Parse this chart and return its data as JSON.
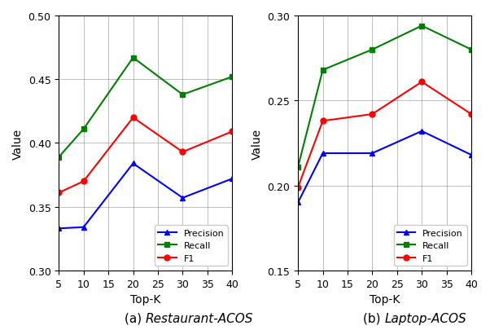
{
  "topk": [
    5,
    10,
    20,
    30,
    40
  ],
  "restaurant": {
    "precision": [
      0.333,
      0.334,
      0.384,
      0.357,
      0.372
    ],
    "recall": [
      0.389,
      0.411,
      0.467,
      0.438,
      0.452
    ],
    "f1": [
      0.361,
      0.37,
      0.42,
      0.393,
      0.409
    ]
  },
  "laptop": {
    "precision": [
      0.19,
      0.219,
      0.219,
      0.232,
      0.218
    ],
    "recall": [
      0.211,
      0.268,
      0.28,
      0.294,
      0.28
    ],
    "f1": [
      0.199,
      0.238,
      0.242,
      0.261,
      0.242
    ]
  },
  "precision_color": "#0000FF",
  "recall_color": "#008000",
  "f1_color": "#FF0000",
  "ylabel": "Value",
  "xlabel": "Top-K",
  "restaurant_ylim": [
    0.3,
    0.5
  ],
  "laptop_ylim": [
    0.15,
    0.3
  ],
  "restaurant_yticks": [
    0.3,
    0.35,
    0.4,
    0.45,
    0.5
  ],
  "laptop_yticks": [
    0.15,
    0.2,
    0.25,
    0.3
  ],
  "xticks": [
    5,
    10,
    15,
    20,
    25,
    30,
    35,
    40
  ],
  "caption_a_prefix": "(a) ",
  "caption_a_italic": "Restaurant-ACOS",
  "caption_b_prefix": "(b) ",
  "caption_b_italic": "Laptop-ACOS",
  "legend_labels": [
    "Precision",
    "Recall",
    "F1"
  ]
}
